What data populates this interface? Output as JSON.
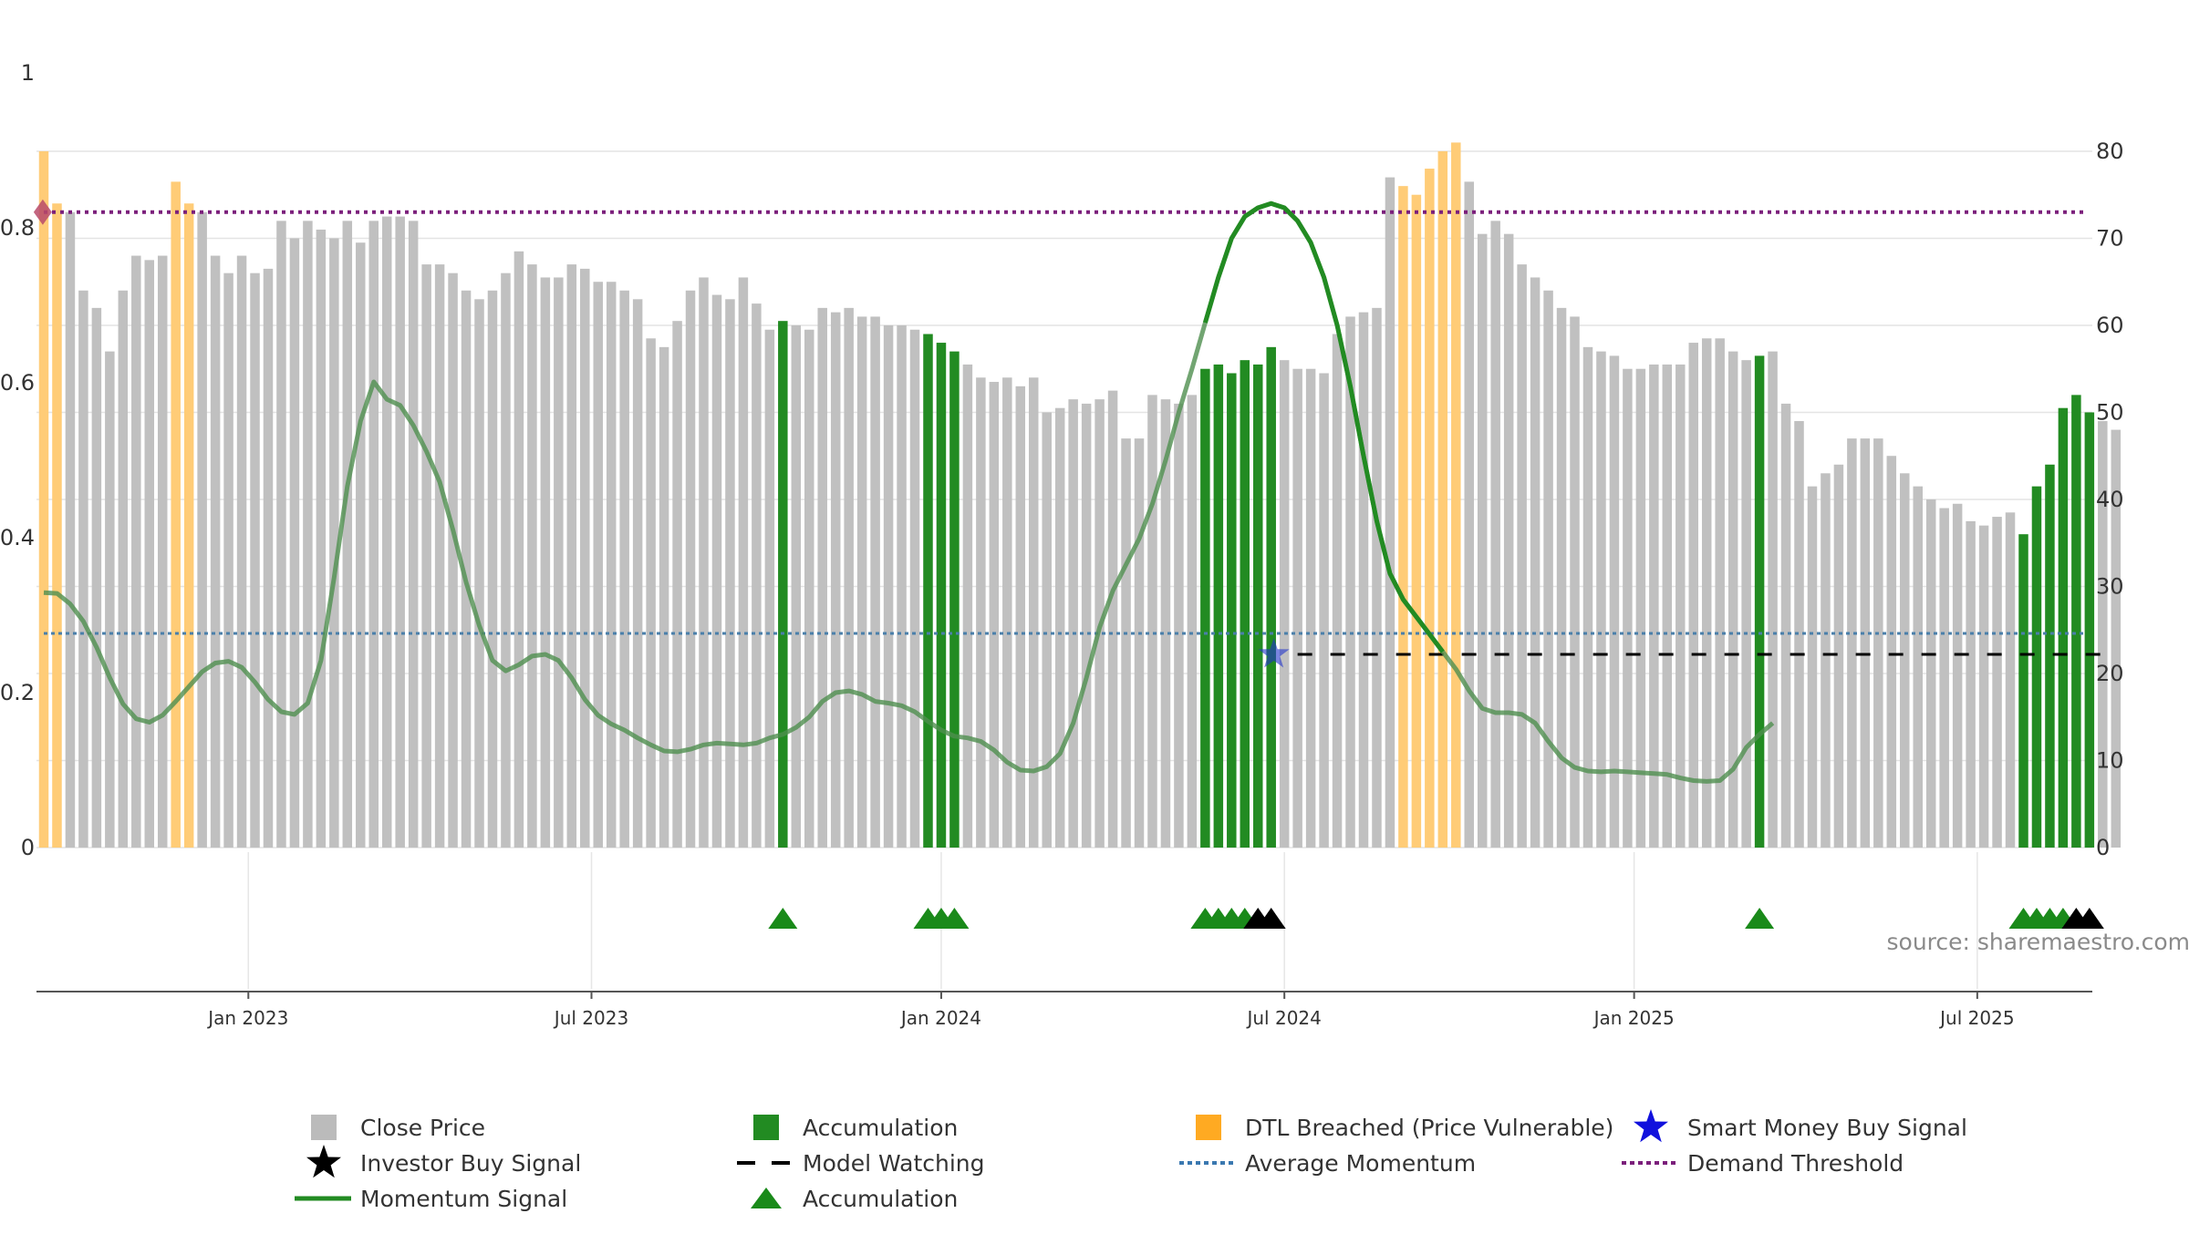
{
  "source": "source: sharemaestro.com",
  "chart_data": {
    "type": "bar",
    "left_axis": {
      "ticks": [
        "0",
        "0.2",
        "0.4",
        "0.6",
        "0.8",
        "1"
      ],
      "ylim": [
        0,
        1
      ]
    },
    "right_axis": {
      "ticks": [
        "0",
        "10",
        "20",
        "30",
        "40",
        "50",
        "60",
        "70",
        "80"
      ],
      "ylim": [
        0,
        89
      ]
    },
    "x_ticks": [
      {
        "label": "Jan 2023",
        "idx": 15.5
      },
      {
        "label": "Jul 2023",
        "idx": 41.5
      },
      {
        "label": "Jan 2024",
        "idx": 68
      },
      {
        "label": "Jul 2024",
        "idx": 94
      },
      {
        "label": "Jan 2025",
        "idx": 120.5
      },
      {
        "label": "Jul 2025",
        "idx": 146.5
      }
    ],
    "bars": {
      "name": "Close Price",
      "values": [
        80,
        74,
        73,
        64,
        62,
        57,
        64,
        68,
        67.5,
        68,
        76.5,
        74,
        73,
        68,
        66,
        68,
        66,
        66.5,
        72,
        70,
        72,
        71,
        70,
        72,
        69.5,
        72,
        72.5,
        72.5,
        72,
        67,
        67,
        66,
        64,
        63,
        64,
        66,
        68.5,
        67,
        65.5,
        65.5,
        67,
        66.5,
        65,
        65,
        64,
        63,
        58.5,
        57.5,
        60.5,
        64,
        65.5,
        63.5,
        63,
        65.5,
        62.5,
        59.5,
        60.5,
        60,
        59.5,
        62,
        61.5,
        62,
        61,
        61,
        60,
        60,
        59.5,
        59,
        58,
        57,
        55.5,
        54,
        53.5,
        54,
        53,
        54,
        50,
        50.5,
        51.5,
        51,
        51.5,
        52.5,
        47,
        47,
        52,
        51.5,
        51,
        52,
        55,
        55.5,
        54.5,
        56,
        55.5,
        57.5,
        56,
        55,
        55,
        54.5,
        59,
        61,
        61.5,
        62,
        77,
        76,
        75,
        78,
        80,
        81,
        76.5,
        70.5,
        72,
        70.5,
        67,
        65.5,
        64,
        62,
        61,
        57.5,
        57,
        56.5,
        55,
        55,
        55.5,
        55.5,
        55.5,
        58,
        58.5,
        58.5,
        57,
        56,
        56.5,
        57,
        51,
        49,
        41.5,
        43,
        44,
        47,
        47,
        47,
        45,
        43,
        41.5,
        40,
        39,
        39.5,
        37.5,
        37,
        38,
        38.5,
        36,
        41.5,
        44,
        50.5,
        52,
        50,
        49,
        48
      ],
      "colors": {
        "close_price": "#c0c0c0",
        "accumulation": "#228b22",
        "dtl_breached": "#ffcc77"
      },
      "categories_by_index": {
        "dtl_breached": [
          0,
          1,
          10,
          11,
          103,
          104,
          105,
          106,
          107
        ],
        "accumulation": [
          56,
          67,
          68,
          69,
          88,
          89,
          90,
          91,
          92,
          93,
          130,
          150,
          151,
          152,
          153,
          154,
          155
        ]
      }
    },
    "momentum_signal": {
      "name": "Momentum Signal",
      "color": "#228b22",
      "points": [
        [
          0,
          29.3
        ],
        [
          1,
          29.2
        ],
        [
          2,
          28.0
        ],
        [
          3,
          26.0
        ],
        [
          4,
          23.0
        ],
        [
          5,
          19.5
        ],
        [
          6,
          16.5
        ],
        [
          7,
          14.8
        ],
        [
          8,
          14.4
        ],
        [
          9,
          15.2
        ],
        [
          10,
          16.8
        ],
        [
          11,
          18.5
        ],
        [
          12,
          20.2
        ],
        [
          13,
          21.2
        ],
        [
          14,
          21.4
        ],
        [
          15,
          20.7
        ],
        [
          16,
          19.0
        ],
        [
          17,
          17.0
        ],
        [
          18,
          15.6
        ],
        [
          19,
          15.3
        ],
        [
          20,
          16.6
        ],
        [
          21,
          21.5
        ],
        [
          22,
          31.0
        ],
        [
          23,
          41.5
        ],
        [
          24,
          49.0
        ],
        [
          25,
          53.5
        ],
        [
          26,
          51.5
        ],
        [
          27,
          50.8
        ],
        [
          28,
          48.5
        ],
        [
          29,
          45.5
        ],
        [
          30,
          42.0
        ],
        [
          31,
          36.5
        ],
        [
          32,
          30.5
        ],
        [
          33,
          25.5
        ],
        [
          34,
          21.5
        ],
        [
          35,
          20.3
        ],
        [
          36,
          21.0
        ],
        [
          37,
          22.0
        ],
        [
          38,
          22.2
        ],
        [
          39,
          21.5
        ],
        [
          40,
          19.5
        ],
        [
          41,
          17.0
        ],
        [
          42,
          15.2
        ],
        [
          43,
          14.2
        ],
        [
          44,
          13.5
        ],
        [
          45,
          12.6
        ],
        [
          46,
          11.8
        ],
        [
          47,
          11.1
        ],
        [
          48,
          11.0
        ],
        [
          49,
          11.3
        ],
        [
          50,
          11.8
        ],
        [
          51,
          12.0
        ],
        [
          52,
          11.9
        ],
        [
          53,
          11.8
        ],
        [
          54,
          12.0
        ],
        [
          55,
          12.6
        ],
        [
          56,
          13.0
        ],
        [
          57,
          13.8
        ],
        [
          58,
          15.0
        ],
        [
          59,
          16.8
        ],
        [
          60,
          17.8
        ],
        [
          61,
          18.0
        ],
        [
          62,
          17.6
        ],
        [
          63,
          16.8
        ],
        [
          64,
          16.6
        ],
        [
          65,
          16.3
        ],
        [
          66,
          15.6
        ],
        [
          67,
          14.5
        ],
        [
          68,
          13.5
        ],
        [
          69,
          12.8
        ],
        [
          70,
          12.6
        ],
        [
          71,
          12.2
        ],
        [
          72,
          11.2
        ],
        [
          73,
          9.8
        ],
        [
          74,
          8.9
        ],
        [
          75,
          8.8
        ],
        [
          76,
          9.3
        ],
        [
          77,
          10.8
        ],
        [
          78,
          14.3
        ],
        [
          79,
          19.5
        ],
        [
          80,
          25.3
        ],
        [
          81,
          29.5
        ],
        [
          82,
          32.5
        ],
        [
          83,
          35.5
        ],
        [
          84,
          39.5
        ],
        [
          85,
          44.5
        ],
        [
          86,
          50.0
        ],
        [
          87,
          55.0
        ],
        [
          88,
          60.3
        ],
        [
          89,
          65.5
        ],
        [
          90,
          70.0
        ],
        [
          91,
          72.5
        ],
        [
          92,
          73.5
        ],
        [
          93,
          74.0
        ],
        [
          94,
          73.5
        ],
        [
          95,
          72.0
        ],
        [
          96,
          69.5
        ],
        [
          97,
          65.5
        ],
        [
          98,
          60.0
        ],
        [
          99,
          53.0
        ],
        [
          100,
          45.0
        ],
        [
          101,
          37.5
        ],
        [
          102,
          31.5
        ],
        [
          103,
          28.5
        ],
        [
          104,
          26.5
        ],
        [
          105,
          24.5
        ],
        [
          106,
          22.5
        ],
        [
          107,
          20.5
        ],
        [
          108,
          18.0
        ],
        [
          109,
          16.0
        ],
        [
          110,
          15.5
        ],
        [
          111,
          15.5
        ],
        [
          112,
          15.3
        ],
        [
          113,
          14.3
        ],
        [
          114,
          12.2
        ],
        [
          115,
          10.3
        ],
        [
          116,
          9.2
        ],
        [
          117,
          8.8
        ],
        [
          118,
          8.7
        ],
        [
          119,
          8.8
        ],
        [
          120,
          8.7
        ],
        [
          121,
          8.6
        ],
        [
          122,
          8.5
        ],
        [
          123,
          8.4
        ],
        [
          124,
          8.0
        ],
        [
          125,
          7.7
        ],
        [
          126,
          7.6
        ],
        [
          127,
          7.7
        ],
        [
          128,
          9.0
        ],
        [
          129,
          11.5
        ],
        [
          130,
          13.0
        ],
        [
          131,
          14.3
        ]
      ],
      "bold_range_idx": [
        88,
        106
      ]
    },
    "average_momentum": {
      "name": "Average Momentum",
      "value": 24.6,
      "color": "#4a7faa"
    },
    "demand_threshold": {
      "name": "Demand Threshold",
      "value": 73,
      "color": "#7b1f7b"
    },
    "model_watching": {
      "name": "Model Watching",
      "value": 22.2,
      "from_idx": 95,
      "to_idx": 156,
      "color": "#000000"
    },
    "smart_money_buy": {
      "name": "Smart Money Buy Signal",
      "idx": 93.2,
      "value": 22.2,
      "color": "#2233cc"
    },
    "threshold_marker": {
      "idx": 0.2,
      "value": 73,
      "color": "#b84a6a"
    },
    "signal_markers": {
      "accumulation_color": "#1a8a1a",
      "investor_color": "#000000",
      "accumulation_idx": [
        56,
        67,
        68,
        69,
        88,
        89,
        90,
        91,
        130,
        150,
        151,
        152,
        153
      ],
      "investor_idx": [
        92,
        93,
        154,
        155
      ]
    },
    "legend": [
      {
        "label": "Close Price",
        "symbol": "square",
        "color": "#bbbbbb"
      },
      {
        "label": "Accumulation",
        "symbol": "square",
        "color": "#228b22"
      },
      {
        "label": "DTL Breached (Price Vulnerable)",
        "symbol": "square",
        "color": "#ffaa22"
      },
      {
        "label": "Smart Money Buy Signal",
        "symbol": "star",
        "color": "#1111dd"
      },
      {
        "label": "Investor Buy Signal",
        "symbol": "star",
        "color": "#000000"
      },
      {
        "label": "Model Watching",
        "symbol": "dash",
        "color": "#000000"
      },
      {
        "label": "Average Momentum",
        "symbol": "dotted",
        "color": "#3a78b0"
      },
      {
        "label": "Demand Threshold",
        "symbol": "dotted",
        "color": "#7b1f7b"
      },
      {
        "label": "Momentum Signal",
        "symbol": "line",
        "color": "#228b22"
      },
      {
        "label": "Accumulation",
        "symbol": "triangle",
        "color": "#1a8a1a"
      }
    ]
  }
}
